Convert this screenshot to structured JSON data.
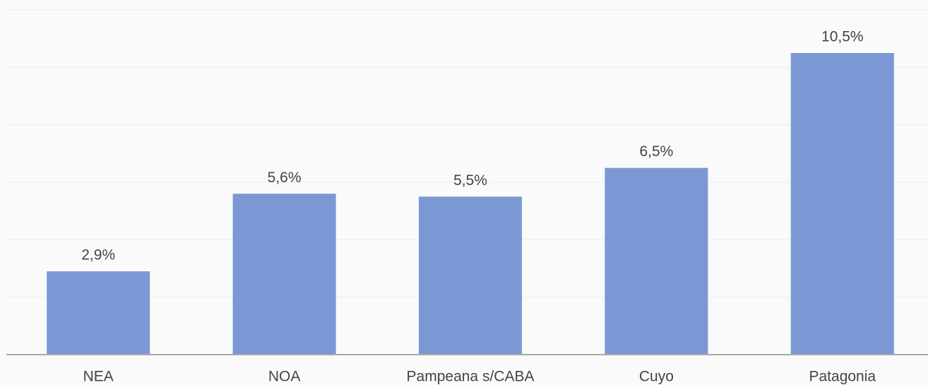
{
  "chart_data": {
    "type": "bar",
    "categories": [
      "NEA",
      "NOA",
      "Pampeana s/CABA",
      "Cuyo",
      "Patagonia"
    ],
    "values": [
      2.9,
      5.6,
      5.5,
      6.5,
      10.5
    ],
    "value_labels": [
      "2,9%",
      "5,6%",
      "5,5%",
      "6,5%",
      "10,5%"
    ],
    "color": "#7b98d4",
    "ylim": [
      0,
      12
    ],
    "yticks": [
      0,
      2,
      4,
      6,
      8,
      10,
      12
    ],
    "grid": true
  }
}
